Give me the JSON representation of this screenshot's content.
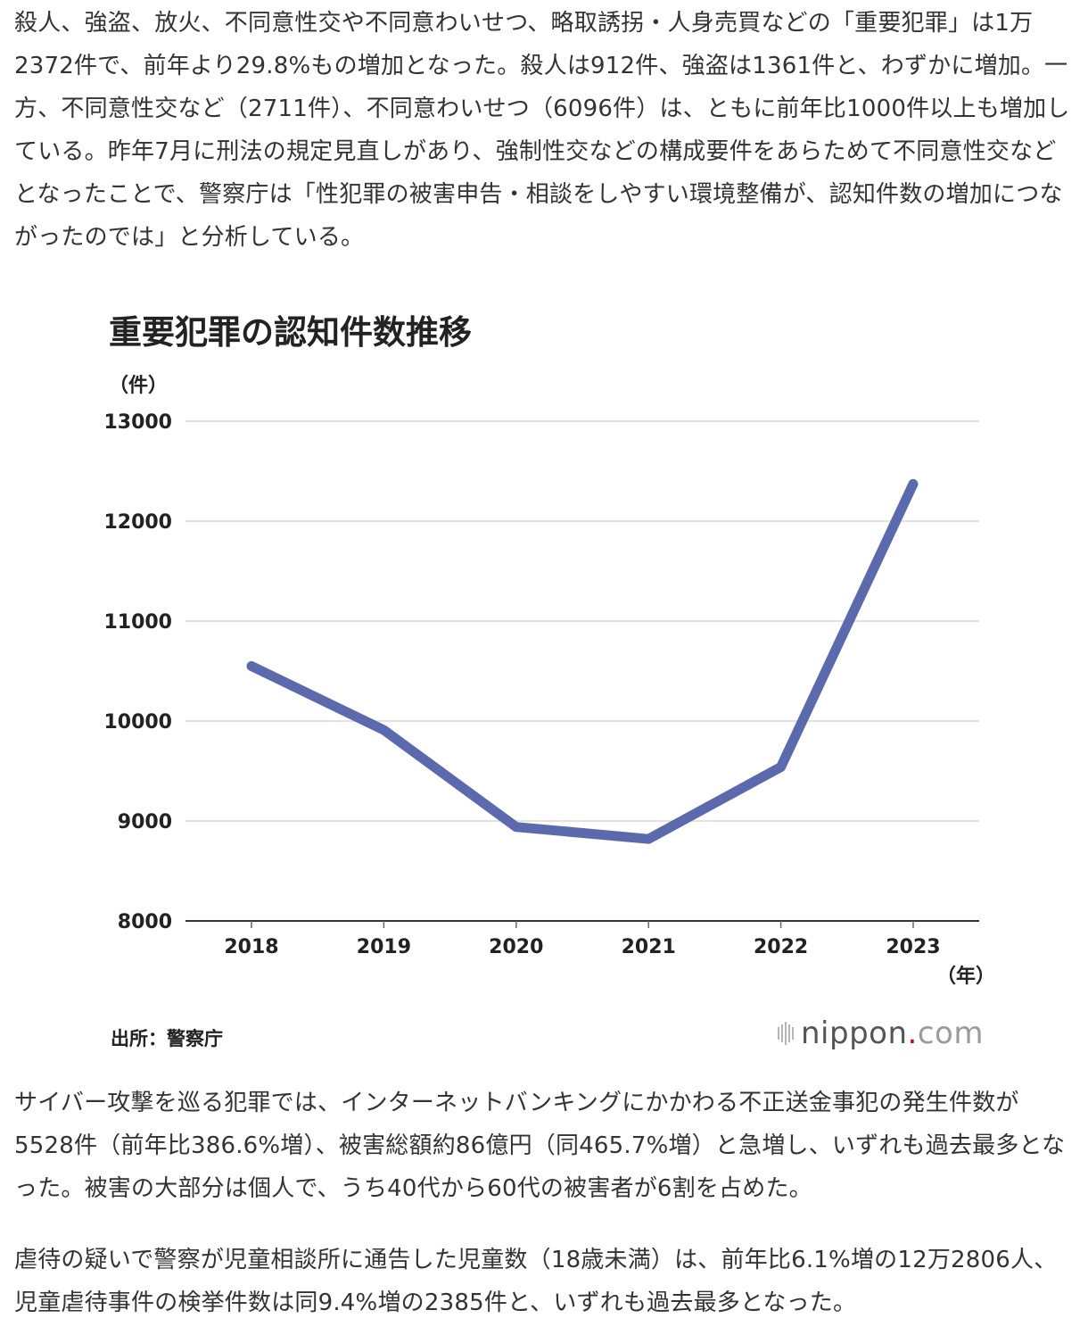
{
  "article": {
    "paragraph1": "殺人、強盗、放火、不同意性交や不同意わいせつ、略取誘拐・人身売買などの「重要犯罪」は1万2372件で、前年より29.8%もの増加となった。殺人は912件、強盗は1361件と、わずかに増加。一方、不同意性交など（2711件）、不同意わいせつ（6096件）は、ともに前年比1000件以上も増加している。昨年7月に刑法の規定見直しがあり、強制性交などの構成要件をあらためて不同意性交などとなったことで、警察庁は「性犯罪の被害申告・相談をしやすい環境整備が、認知件数の増加につながったのでは」と分析している。",
    "paragraph2": "サイバー攻撃を巡る犯罪では、インターネットバンキングにかかわる不正送金事犯の発生件数が5528件（前年比386.6%増）、被害総額約86億円（同465.7%増）と急増し、いずれも過去最多となった。被害の大部分は個人で、うち40代から60代の被害者が6割を占めた。",
    "paragraph3": "虐待の疑いで警察が児童相談所に通告した児童数（18歳未満）は、前年比6.1%増の12万2806人、児童虐待事件の検挙件数は同9.4%増の2385件と、いずれも過去最多となった。"
  },
  "figure": {
    "source": "出所：警察庁",
    "logo": {
      "main": "nippon",
      "dot": ".",
      "suffix": "com",
      "icon": "nippon-logo-bars-icon"
    }
  },
  "chart_data": {
    "type": "line",
    "title": "重要犯罪の認知件数推移",
    "ylabel": "（件）",
    "xlabel": "（年）",
    "x": [
      "2018",
      "2019",
      "2020",
      "2021",
      "2022",
      "2023"
    ],
    "series": [
      {
        "values": [
          10550,
          9910,
          8940,
          8820,
          9540,
          12372
        ],
        "color": "#5b6aad"
      }
    ],
    "ylim": [
      8000,
      13000
    ],
    "yticks": [
      8000,
      9000,
      10000,
      11000,
      12000,
      13000
    ],
    "grid": true,
    "legend": "none"
  }
}
